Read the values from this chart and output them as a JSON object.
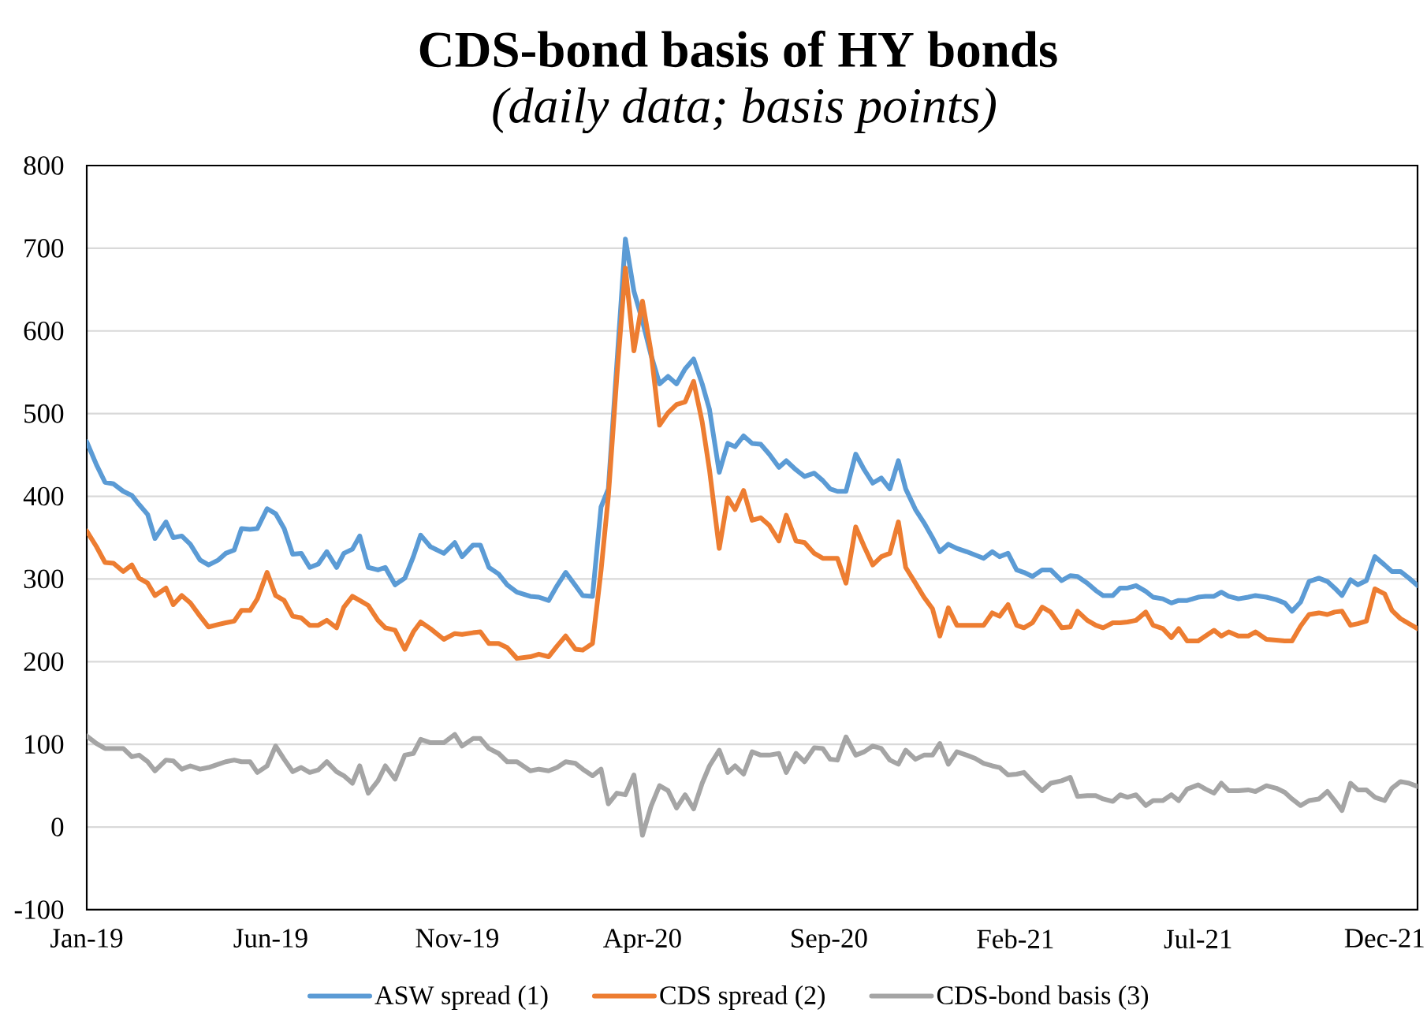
{
  "chart_data": {
    "type": "line",
    "title": "CDS-bond basis of HY bonds",
    "subtitle": "(daily data; basis points)",
    "x": [
      "2019-01-01",
      "2019-01-09",
      "2019-01-16",
      "2019-01-23",
      "2019-01-31",
      "2019-02-07",
      "2019-02-13",
      "2019-02-20",
      "2019-02-26",
      "2019-03-07",
      "2019-03-13",
      "2019-03-20",
      "2019-03-27",
      "2019-04-04",
      "2019-04-11",
      "2019-04-19",
      "2019-04-25",
      "2019-05-02",
      "2019-05-08",
      "2019-05-15",
      "2019-05-21",
      "2019-05-29",
      "2019-06-05",
      "2019-06-12",
      "2019-06-19",
      "2019-06-26",
      "2019-07-03",
      "2019-07-10",
      "2019-07-17",
      "2019-07-25",
      "2019-07-31",
      "2019-08-07",
      "2019-08-13",
      "2019-08-20",
      "2019-08-28",
      "2019-09-03",
      "2019-09-11",
      "2019-09-19",
      "2019-09-26",
      "2019-10-02",
      "2019-10-10",
      "2019-10-21",
      "2019-10-30",
      "2019-11-05",
      "2019-11-14",
      "2019-11-20",
      "2019-11-27",
      "2019-12-05",
      "2019-12-12",
      "2019-12-20",
      "2019-12-31",
      "2020-01-07",
      "2020-01-15",
      "2020-01-22",
      "2020-01-29",
      "2020-02-06",
      "2020-02-12",
      "2020-02-20",
      "2020-02-27",
      "2020-03-04",
      "2020-03-11",
      "2020-03-18",
      "2020-03-25",
      "2020-04-01",
      "2020-04-08",
      "2020-04-15",
      "2020-04-22",
      "2020-04-29",
      "2020-05-06",
      "2020-05-13",
      "2020-05-20",
      "2020-05-26",
      "2020-06-03",
      "2020-06-10",
      "2020-06-16",
      "2020-06-23",
      "2020-06-30",
      "2020-07-07",
      "2020-07-14",
      "2020-07-22",
      "2020-07-28",
      "2020-08-05",
      "2020-08-12",
      "2020-08-20",
      "2020-08-27",
      "2020-09-02",
      "2020-09-08",
      "2020-09-15",
      "2020-09-23",
      "2020-09-30",
      "2020-10-07",
      "2020-10-14",
      "2020-10-21",
      "2020-10-28",
      "2020-11-03",
      "2020-11-11",
      "2020-11-18",
      "2020-11-25",
      "2020-12-01",
      "2020-12-08",
      "2020-12-15",
      "2020-12-23",
      "2020-12-30",
      "2021-01-06",
      "2021-01-13",
      "2021-01-19",
      "2021-01-26",
      "2021-02-02",
      "2021-02-08",
      "2021-02-15",
      "2021-02-23",
      "2021-03-02",
      "2021-03-11",
      "2021-03-18",
      "2021-03-24",
      "2021-04-01",
      "2021-04-08",
      "2021-04-14",
      "2021-04-22",
      "2021-04-28",
      "2021-05-04",
      "2021-05-11",
      "2021-05-19",
      "2021-05-25",
      "2021-06-02",
      "2021-06-09",
      "2021-06-15",
      "2021-06-22",
      "2021-07-01",
      "2021-07-07",
      "2021-07-14",
      "2021-07-20",
      "2021-07-26",
      "2021-08-03",
      "2021-08-11",
      "2021-08-17",
      "2021-08-26",
      "2021-09-03",
      "2021-09-10",
      "2021-09-16",
      "2021-09-23",
      "2021-09-30",
      "2021-10-08",
      "2021-10-15",
      "2021-10-21",
      "2021-10-27",
      "2021-11-03",
      "2021-11-09",
      "2021-11-16",
      "2021-11-23",
      "2021-12-01",
      "2021-12-07",
      "2021-12-14",
      "2021-12-21",
      "2021-12-28"
    ],
    "xlim": [
      "2019-01-01",
      "2021-12-28"
    ],
    "xticks": [
      {
        "value": "2019-01-01",
        "label": "Jan-19"
      },
      {
        "value": "2019-06-01",
        "label": "Jun-19"
      },
      {
        "value": "2019-11-01",
        "label": "Nov-19"
      },
      {
        "value": "2020-04-01",
        "label": "Apr-20"
      },
      {
        "value": "2020-09-01",
        "label": "Sep-20"
      },
      {
        "value": "2021-02-01",
        "label": "Feb-21"
      },
      {
        "value": "2021-07-01",
        "label": "Jul-21"
      },
      {
        "value": "2021-12-01",
        "label": "Dec-21"
      }
    ],
    "ylim": [
      -100,
      800
    ],
    "yticks": [
      -100,
      0,
      100,
      200,
      300,
      400,
      500,
      600,
      700,
      800
    ],
    "grid": "y",
    "legend": "bottom",
    "line_style": "solid",
    "series": [
      {
        "name": "ASW spread (1)",
        "color": "#5b9bd5",
        "values": [
          466,
          438,
          417,
          415,
          406,
          401,
          390,
          378,
          349,
          369,
          350,
          352,
          342,
          323,
          317,
          323,
          331,
          335,
          361,
          360,
          361,
          385,
          379,
          361,
          330,
          331,
          314,
          318,
          333,
          314,
          331,
          336,
          352,
          314,
          311,
          314,
          293,
          301,
          327,
          353,
          339,
          331,
          344,
          327,
          341,
          341,
          314,
          306,
          293,
          284,
          279,
          278,
          274,
          292,
          308,
          292,
          280,
          279,
          387,
          409,
          560,
          711,
          648,
          612,
          571,
          536,
          545,
          536,
          554,
          566,
          536,
          505,
          429,
          464,
          460,
          473,
          464,
          463,
          451,
          435,
          443,
          432,
          424,
          428,
          419,
          409,
          406,
          406,
          451,
          432,
          416,
          422,
          409,
          443,
          409,
          384,
          368,
          350,
          333,
          342,
          337,
          333,
          329,
          325,
          333,
          327,
          331,
          311,
          308,
          303,
          311,
          311,
          298,
          304,
          303,
          295,
          286,
          280,
          280,
          289,
          289,
          292,
          285,
          278,
          276,
          271,
          274,
          274,
          278,
          279,
          279,
          284,
          279,
          276,
          278,
          280,
          278,
          275,
          271,
          261,
          272,
          297,
          301,
          297,
          289,
          280,
          299,
          293,
          298,
          327,
          317,
          309,
          309,
          301,
          292
        ]
      },
      {
        "name": "CDS spread (2)",
        "color": "#ed7d31",
        "values": [
          358,
          339,
          320,
          319,
          309,
          317,
          301,
          295,
          280,
          289,
          269,
          280,
          271,
          255,
          242,
          245,
          247,
          249,
          262,
          262,
          276,
          308,
          280,
          274,
          255,
          253,
          244,
          244,
          250,
          241,
          266,
          279,
          274,
          268,
          250,
          241,
          238,
          215,
          236,
          248,
          240,
          227,
          234,
          233,
          235,
          236,
          222,
          222,
          217,
          204,
          206,
          209,
          206,
          219,
          231,
          215,
          214,
          222,
          310,
          400,
          545,
          676,
          576,
          636,
          575,
          486,
          501,
          511,
          514,
          539,
          490,
          432,
          337,
          398,
          384,
          407,
          371,
          374,
          365,
          346,
          377,
          346,
          344,
          331,
          325,
          325,
          325,
          295,
          363,
          339,
          317,
          327,
          331,
          369,
          314,
          295,
          278,
          264,
          231,
          265,
          244,
          244,
          244,
          244,
          259,
          255,
          269,
          244,
          241,
          247,
          266,
          260,
          241,
          242,
          261,
          250,
          244,
          241,
          247,
          247,
          248,
          250,
          260,
          244,
          240,
          229,
          240,
          225,
          225,
          231,
          238,
          231,
          236,
          231,
          231,
          236,
          227,
          226,
          225,
          225,
          243,
          257,
          259,
          257,
          260,
          261,
          244,
          246,
          249,
          288,
          282,
          262,
          252,
          246,
          240
        ]
      },
      {
        "name": "CDS-bond basis (3)",
        "color": "#a5a5a5",
        "values": [
          110,
          101,
          95,
          95,
          95,
          85,
          87,
          79,
          68,
          81,
          80,
          70,
          74,
          70,
          72,
          76,
          79,
          81,
          79,
          79,
          66,
          74,
          98,
          82,
          67,
          72,
          66,
          69,
          79,
          67,
          62,
          53,
          74,
          41,
          56,
          74,
          58,
          87,
          89,
          106,
          102,
          102,
          112,
          98,
          107,
          107,
          95,
          89,
          79,
          79,
          68,
          70,
          68,
          72,
          79,
          77,
          70,
          62,
          70,
          28,
          41,
          39,
          63,
          -10,
          25,
          50,
          44,
          23,
          39,
          22,
          53,
          74,
          93,
          66,
          74,
          64,
          91,
          87,
          87,
          89,
          66,
          89,
          79,
          96,
          95,
          82,
          81,
          109,
          87,
          91,
          98,
          95,
          81,
          76,
          93,
          82,
          87,
          87,
          101,
          76,
          91,
          87,
          83,
          77,
          74,
          72,
          63,
          64,
          66,
          55,
          44,
          53,
          56,
          60,
          37,
          38,
          38,
          34,
          31,
          39,
          36,
          39,
          26,
          32,
          32,
          39,
          32,
          46,
          51,
          46,
          41,
          53,
          44,
          44,
          45,
          43,
          50,
          47,
          42,
          34,
          26,
          32,
          34,
          43,
          32,
          20,
          53,
          45,
          45,
          36,
          32,
          47,
          55,
          53,
          49
        ]
      }
    ]
  }
}
